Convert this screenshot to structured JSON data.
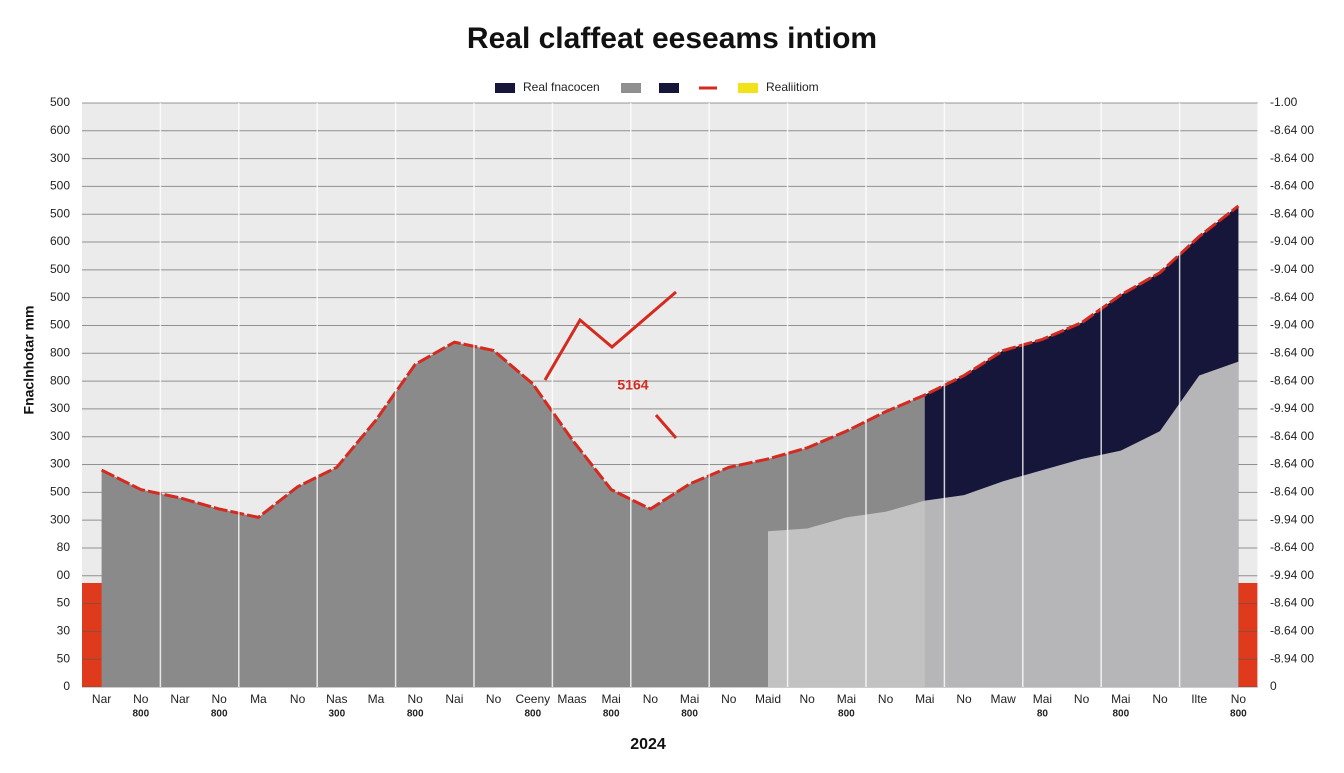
{
  "chart_data": {
    "type": "area",
    "title": "Real claffeat eeseams intiom",
    "y_label": "Fnaclnhotar mm",
    "x_label": "2024",
    "annotation": "5164",
    "legend": [
      {
        "color": "#15163a",
        "label": "Real fnacocen"
      },
      {
        "color": "#8f8f8f"
      },
      {
        "color": "#15163a"
      },
      {
        "color": "#d42a1f"
      },
      {
        "color": "#f2e21a",
        "label": "Realiitiom"
      }
    ],
    "categories": [
      "Nar",
      "No",
      "Nar",
      "No",
      "Ma",
      "No",
      "Nas",
      "Ma",
      "No",
      "Nai",
      "No",
      "Ceeny",
      "Maas",
      "Mai",
      "No",
      "Mai",
      "No",
      "Maid",
      "No",
      "Mai",
      "No",
      "Mai",
      "No",
      "Maw",
      "Mai",
      "No",
      "Mai",
      "No",
      "Ilte",
      "No"
    ],
    "x_sublabels": [
      null,
      "800",
      null,
      "800",
      null,
      null,
      "300",
      null,
      "800",
      null,
      null,
      "800",
      null,
      "800",
      null,
      "800",
      null,
      null,
      null,
      "800",
      null,
      null,
      null,
      null,
      "80",
      null,
      "800",
      null,
      null,
      "800"
    ],
    "ylim": [
      0,
      21
    ],
    "yticks": [
      0,
      {
        "value": 1,
        "label": "50"
      },
      {
        "value": 2,
        "label": "30"
      },
      {
        "value": 3,
        "label": "50"
      },
      {
        "value": 4,
        "label": "00"
      },
      {
        "value": 5,
        "label": "80"
      },
      {
        "value": 6,
        "label": "300"
      },
      {
        "value": 7,
        "label": "500"
      },
      {
        "value": 8,
        "label": "300"
      },
      {
        "value": 9,
        "label": "300"
      },
      {
        "value": 10,
        "label": "300"
      },
      {
        "value": 11,
        "label": "800"
      },
      {
        "value": 12,
        "label": "800"
      },
      {
        "value": 13,
        "label": "500"
      },
      {
        "value": 14,
        "label": "500"
      },
      {
        "value": 15,
        "label": "500"
      },
      {
        "value": 16,
        "label": "600"
      },
      {
        "value": 17,
        "label": "500"
      },
      {
        "value": 18,
        "label": "500"
      },
      {
        "value": 19,
        "label": "300"
      },
      {
        "value": 20,
        "label": "600"
      },
      {
        "value": 21,
        "label": "500"
      }
    ],
    "y2lim": [
      0,
      21
    ],
    "y2ticks": [
      0,
      {
        "value": 1,
        "label": "-8.94 00"
      },
      {
        "value": 2,
        "label": "-8.64 00"
      },
      {
        "value": 3,
        "label": "-8.64 00"
      },
      {
        "value": 4,
        "label": "-9.94 00"
      },
      {
        "value": 5,
        "label": "-8.64 00"
      },
      {
        "value": 6,
        "label": "-9.94 00"
      },
      {
        "value": 7,
        "label": "-8.64 00"
      },
      {
        "value": 8,
        "label": "-8.64 00"
      },
      {
        "value": 9,
        "label": "-8.64 00"
      },
      {
        "value": 10,
        "label": "-9.94 00"
      },
      {
        "value": 11,
        "label": "-8.64 00"
      },
      {
        "value": 12,
        "label": "-8.64 00"
      },
      {
        "value": 13,
        "label": "-9.04 00"
      },
      {
        "value": 14,
        "label": "-8.64 00"
      },
      {
        "value": 15,
        "label": "-9.04 00"
      },
      {
        "value": 16,
        "label": "-9.04 00"
      },
      {
        "value": 17,
        "label": "-8.64 00"
      },
      {
        "value": 18,
        "label": "-8.64 00"
      },
      {
        "value": 19,
        "label": "-8.64 00"
      },
      {
        "value": 20,
        "label": "-8.64 00"
      },
      {
        "value": 21,
        "label": "-1.00"
      }
    ],
    "band": {
      "color": "#e03a1c",
      "value": 3.74
    },
    "series": [
      {
        "color": "#8a8a8a",
        "line_color": "#d42a1f",
        "values": [
          7.8,
          7.1,
          6.8,
          6.4,
          6.1,
          7.2,
          7.9,
          9.6,
          11.6,
          12.4,
          12.1,
          10.9,
          8.9,
          7.1,
          6.4,
          7.3,
          7.9,
          8.2,
          8.6,
          9.2,
          9.9,
          10.5,
          11.2,
          12.1,
          12.5,
          13.1,
          14.1,
          14.9,
          16.2,
          17.3
        ]
      },
      {
        "color": "#15163a",
        "values": [
          null,
          null,
          null,
          null,
          null,
          null,
          null,
          null,
          null,
          null,
          null,
          null,
          null,
          null,
          null,
          null,
          null,
          null,
          null,
          null,
          null,
          10.5,
          11.2,
          12.1,
          12.5,
          13.1,
          14.1,
          14.9,
          16.2,
          17.3
        ]
      },
      {
        "color": "#c8c8c8",
        "values": [
          null,
          null,
          null,
          null,
          null,
          null,
          null,
          null,
          null,
          null,
          null,
          null,
          null,
          null,
          null,
          null,
          null,
          5.6,
          5.7,
          6.1,
          6.3,
          6.7,
          6.9,
          7.4,
          7.8,
          8.2,
          8.5,
          9.2,
          11.2,
          11.7
        ]
      }
    ],
    "grid": true
  }
}
